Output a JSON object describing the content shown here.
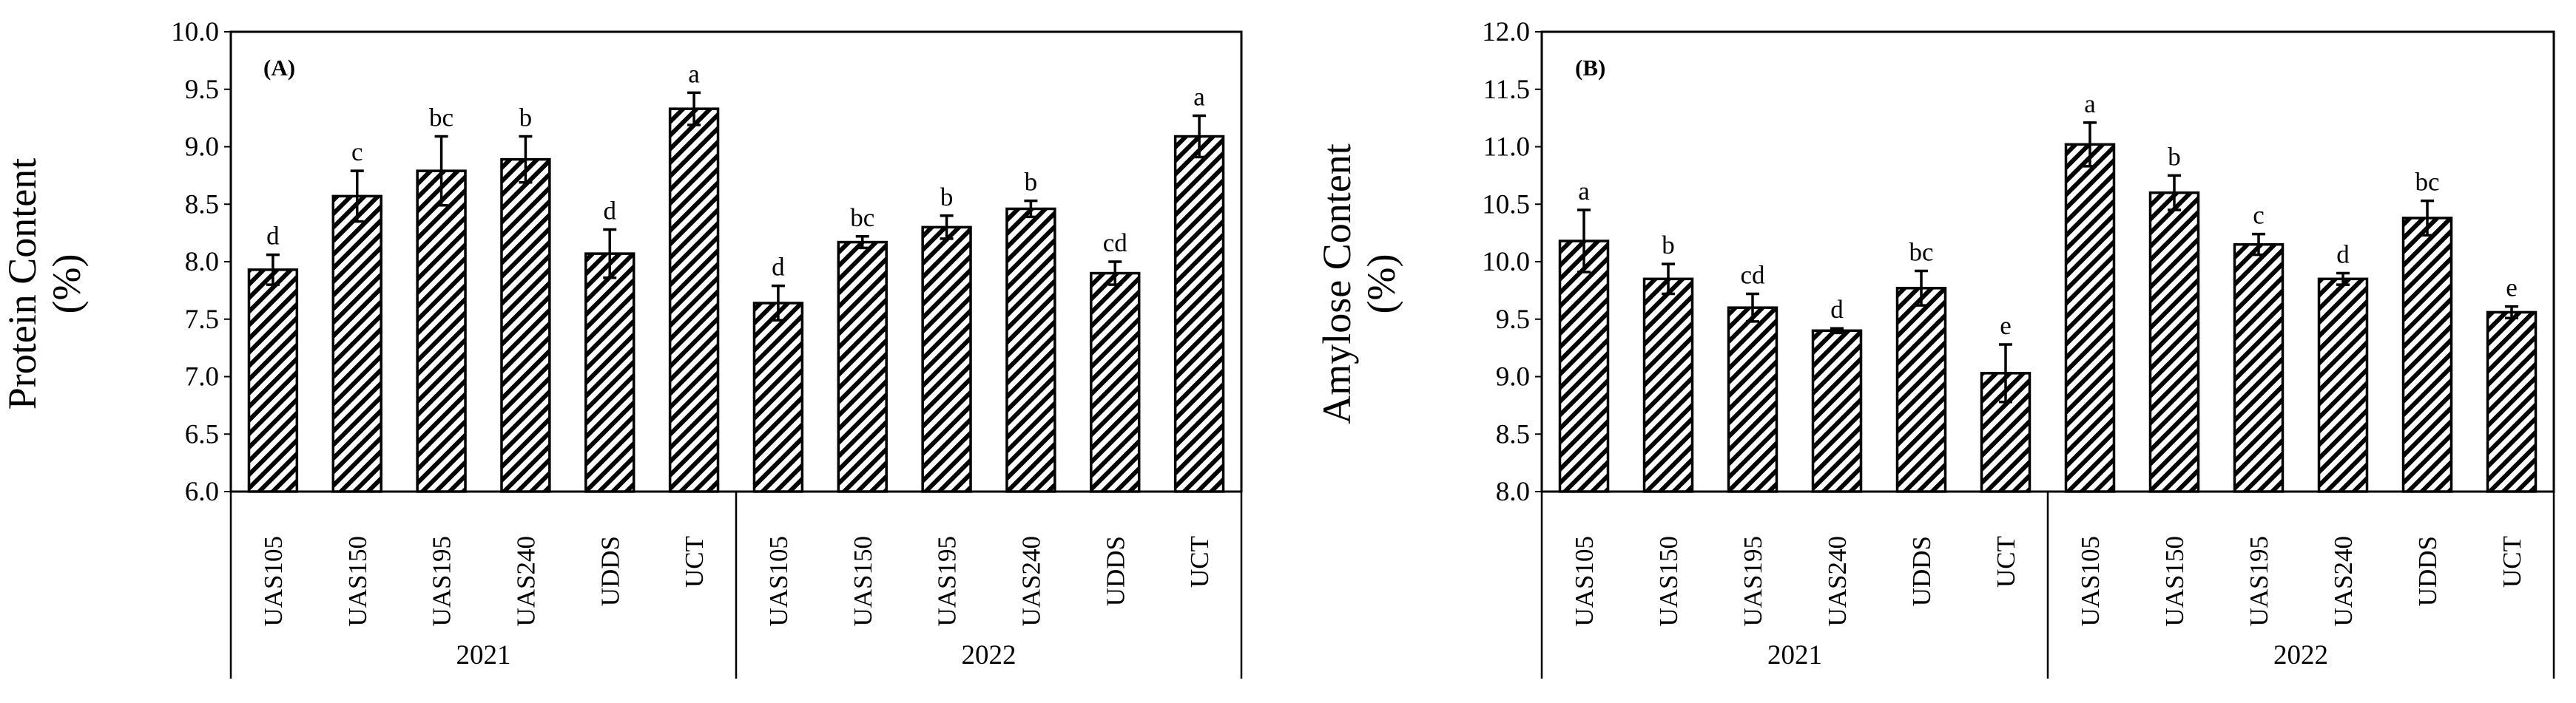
{
  "chart_data": [
    {
      "type": "bar",
      "panel_label": "(A)",
      "ylabel_line1": "Protein  Content",
      "ylabel_line2": "(%)",
      "ylim": [
        6.0,
        10.0
      ],
      "yticks": [
        "6.0",
        "6.5",
        "7.0",
        "7.5",
        "8.0",
        "8.5",
        "9.0",
        "9.5",
        "10.0"
      ],
      "groups": [
        {
          "name": "2021",
          "categories": [
            "UAS105",
            "UAS150",
            "UAS195",
            "UAS240",
            "UDDS",
            "UCT"
          ],
          "values": [
            7.93,
            8.57,
            8.79,
            8.89,
            8.07,
            9.33
          ],
          "errors": [
            0.13,
            0.22,
            0.3,
            0.2,
            0.21,
            0.14
          ],
          "letters": [
            "d",
            "c",
            "bc",
            "b",
            "d",
            "a"
          ]
        },
        {
          "name": "2022",
          "categories": [
            "UAS105",
            "UAS150",
            "UAS195",
            "UAS240",
            "UDDS",
            "UCT"
          ],
          "values": [
            7.64,
            8.17,
            8.3,
            8.46,
            7.9,
            9.09
          ],
          "errors": [
            0.15,
            0.05,
            0.1,
            0.07,
            0.1,
            0.18
          ],
          "letters": [
            "d",
            "bc",
            "b",
            "b",
            "cd",
            "a"
          ]
        }
      ]
    },
    {
      "type": "bar",
      "panel_label": "(B)",
      "ylabel_line1": "Amylose  Content",
      "ylabel_line2": "(%)",
      "ylim": [
        8.0,
        12.0
      ],
      "yticks": [
        "8.0",
        "8.5",
        "9.0",
        "9.5",
        "10.0",
        "10.5",
        "11.0",
        "11.5",
        "12.0"
      ],
      "groups": [
        {
          "name": "2021",
          "categories": [
            "UAS105",
            "UAS150",
            "UAS195",
            "UAS240",
            "UDDS",
            "UCT"
          ],
          "values": [
            10.18,
            9.85,
            9.6,
            9.4,
            9.77,
            9.03
          ],
          "errors": [
            0.27,
            0.13,
            0.12,
            0.02,
            0.15,
            0.25
          ],
          "letters": [
            "a",
            "b",
            "cd",
            "d",
            "bc",
            "e"
          ]
        },
        {
          "name": "2022",
          "categories": [
            "UAS105",
            "UAS150",
            "UAS195",
            "UAS240",
            "UDDS",
            "UCT"
          ],
          "values": [
            11.02,
            10.6,
            10.15,
            9.85,
            10.38,
            9.56
          ],
          "errors": [
            0.19,
            0.15,
            0.09,
            0.05,
            0.15,
            0.05
          ],
          "letters": [
            "a",
            "b",
            "c",
            "d",
            "bc",
            "e"
          ]
        }
      ]
    }
  ]
}
